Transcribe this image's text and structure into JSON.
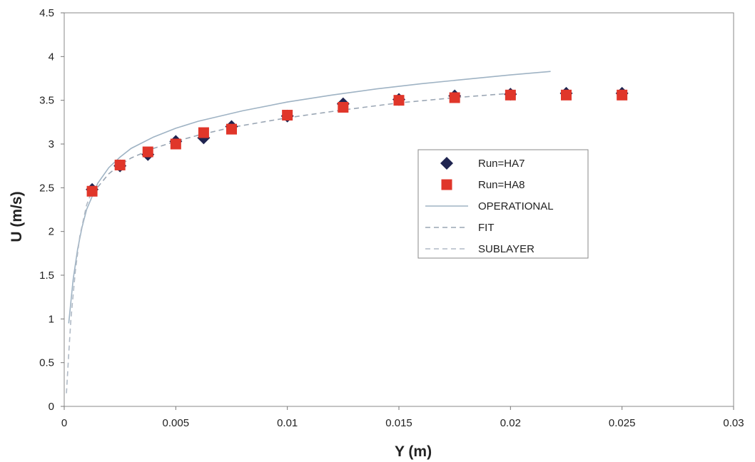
{
  "chart_data": {
    "type": "scatter",
    "xlabel": "Y (m)",
    "ylabel": "U (m/s)",
    "xlim": [
      0,
      0.03
    ],
    "ylim": [
      0,
      4.5
    ],
    "xticks": [
      0,
      0.005,
      0.01,
      0.015,
      0.02,
      0.025,
      0.03
    ],
    "xtick_labels": [
      "0",
      "0.005",
      "0.01",
      "0.015",
      "0.02",
      "0.025",
      "0.03"
    ],
    "yticks": [
      0,
      0.5,
      1,
      1.5,
      2,
      2.5,
      3,
      3.5,
      4,
      4.5
    ],
    "ytick_labels": [
      "0",
      "0.5",
      "1",
      "1.5",
      "2",
      "2.5",
      "3",
      "3.5",
      "4",
      "4.5"
    ],
    "grid": false,
    "legend_position": "center-right",
    "series": [
      {
        "name": "Run=HA7",
        "kind": "markers",
        "marker": "diamond",
        "color": "#1f2450",
        "x": [
          0.00125,
          0.0025,
          0.00375,
          0.005,
          0.00625,
          0.0075,
          0.01,
          0.0125,
          0.015,
          0.0175,
          0.02,
          0.0225,
          0.025
        ],
        "y": [
          2.48,
          2.75,
          2.88,
          3.03,
          3.07,
          3.2,
          3.32,
          3.46,
          3.51,
          3.55,
          3.57,
          3.58,
          3.58
        ]
      },
      {
        "name": "Run=HA8",
        "kind": "markers",
        "marker": "square",
        "color": "#e0362a",
        "x": [
          0.00125,
          0.0025,
          0.00375,
          0.005,
          0.00625,
          0.0075,
          0.01,
          0.0125,
          0.015,
          0.0175,
          0.02,
          0.0225,
          0.025
        ],
        "y": [
          2.46,
          2.76,
          2.91,
          3.0,
          3.13,
          3.17,
          3.33,
          3.42,
          3.5,
          3.53,
          3.56,
          3.56,
          3.56
        ]
      },
      {
        "name": "OPERATIONAL",
        "kind": "line",
        "dash": "solid",
        "color": "#9fb3c4",
        "x": [
          0.0002,
          0.0004,
          0.0006,
          0.0008,
          0.001,
          0.0015,
          0.002,
          0.0025,
          0.003,
          0.004,
          0.005,
          0.006,
          0.008,
          0.01,
          0.012,
          0.014,
          0.016,
          0.018,
          0.02,
          0.0218
        ],
        "y": [
          0.95,
          1.45,
          1.8,
          2.05,
          2.25,
          2.55,
          2.73,
          2.85,
          2.95,
          3.08,
          3.18,
          3.26,
          3.38,
          3.48,
          3.56,
          3.63,
          3.69,
          3.74,
          3.79,
          3.83
        ]
      },
      {
        "name": "FIT",
        "kind": "line",
        "dash": "dashed",
        "color": "#9aa6b4",
        "x": [
          0.00125,
          0.002,
          0.0025,
          0.003,
          0.004,
          0.005,
          0.006,
          0.0075,
          0.01,
          0.0125,
          0.015,
          0.0175,
          0.02
        ],
        "y": [
          2.43,
          2.66,
          2.76,
          2.84,
          2.95,
          3.03,
          3.1,
          3.19,
          3.3,
          3.39,
          3.47,
          3.53,
          3.58
        ]
      },
      {
        "name": "SUBLAYER",
        "kind": "line",
        "dash": "dashed",
        "color": "#b0bac6",
        "x": [
          0.0001,
          0.0002,
          0.0003,
          0.0005,
          0.0007,
          0.001,
          0.0013
        ],
        "y": [
          0.15,
          0.6,
          1.0,
          1.55,
          1.95,
          2.3,
          2.5
        ]
      }
    ]
  }
}
